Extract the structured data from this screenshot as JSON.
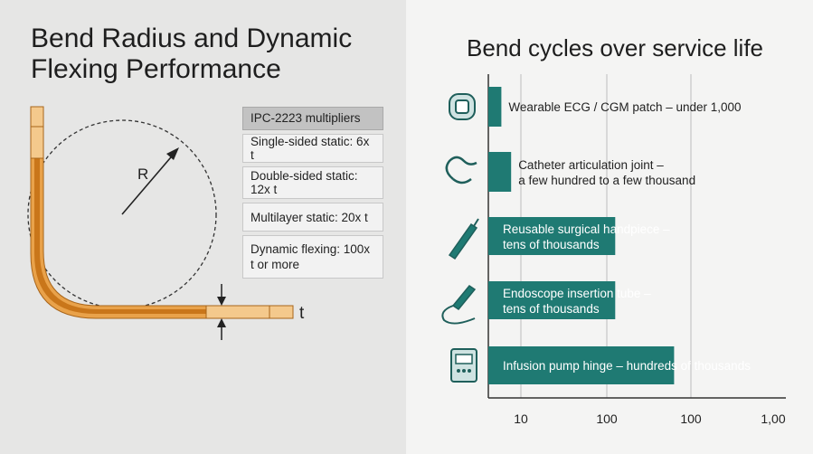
{
  "left": {
    "title": "Bend Radius and Dynamic Flexing Performance",
    "diagram": {
      "radius_label": "R",
      "thickness_label": "t"
    },
    "table": {
      "header": "IPC-2223 multipliers",
      "rows": [
        "Single-sided static: 6x t",
        "Double-sided static: 12x t",
        "Multilayer static: 20x t",
        "Dynamic flexing: 100x t or more"
      ]
    }
  },
  "chart_data": {
    "type": "bar",
    "orientation": "horizontal",
    "title": "Bend cycles over service life",
    "categories": [
      "Wearable ECG / CGM patch – under 1,000",
      "Catheter articulation joint – a few hundred to a few thousand",
      "Reusable surgical handpiece – tens of thousands",
      "Endoscope insertion tube – tens of thousands",
      "Infusion pump hinge – hundreds of thousands"
    ],
    "icons": [
      "patch-icon",
      "catheter-icon",
      "surgical-handpiece-icon",
      "endoscope-icon",
      "infusion-pump-icon"
    ],
    "values": [
      0.4,
      0.7,
      2.1,
      2.1,
      2.8
    ],
    "x_ticks": [
      "10",
      "100",
      "100",
      "1,00"
    ],
    "xlim": [
      0,
      3
    ],
    "bar_color": "#1f7a73",
    "grid": true
  },
  "colors": {
    "flex_orange": "#d98b22",
    "flex_light": "#f2c78a",
    "teal": "#1f7a73",
    "left_bg": "#e6e6e5"
  }
}
